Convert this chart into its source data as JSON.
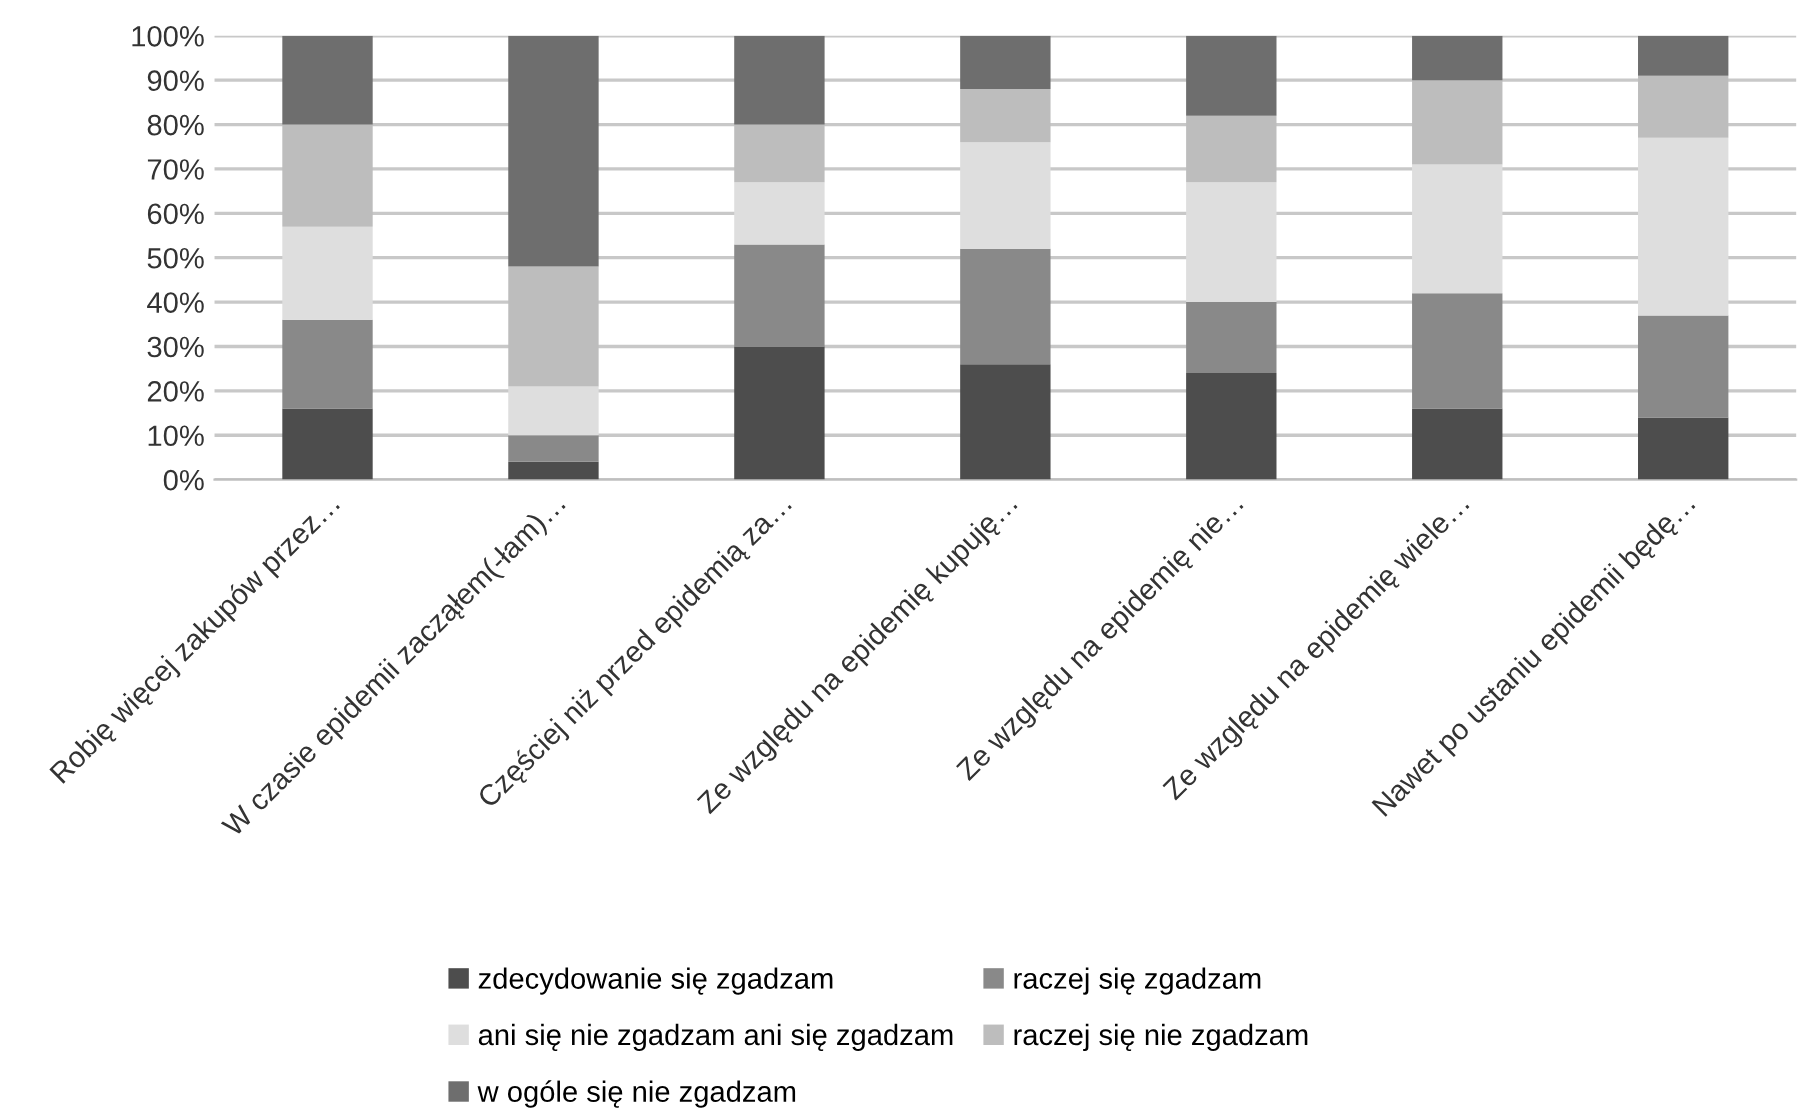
{
  "chart_data": {
    "type": "bar",
    "stacked": true,
    "categories": [
      "Robię więcej zakupów przez…",
      "W czasie epidemii zacząłem(-łam)…",
      "Częściej niż przed epidemią za…",
      "Ze względu na epidemię kupuję…",
      "Ze względu na epidemię nie…",
      "Ze względu na epidemię wiele…",
      "Nawet po ustaniu epidemii będę…"
    ],
    "series": [
      {
        "name": "zdecydowanie się zgadzam",
        "color": "#4d4d4d",
        "values": [
          16,
          4,
          30,
          26,
          24,
          16,
          14
        ]
      },
      {
        "name": "raczej się zgadzam",
        "color": "#898989",
        "values": [
          20,
          6,
          23,
          26,
          16,
          26,
          23
        ]
      },
      {
        "name": "ani się nie zgadzam ani się zgadzam",
        "color": "#dedede",
        "values": [
          21,
          11,
          14,
          24,
          27,
          29,
          40
        ]
      },
      {
        "name": "raczej się nie zgadzam",
        "color": "#bdbdbd",
        "values": [
          23,
          27,
          13,
          12,
          15,
          19,
          14
        ]
      },
      {
        "name": "w ogóle się nie zgadzam",
        "color": "#6e6e6e",
        "values": [
          20,
          52,
          20,
          12,
          18,
          10,
          9
        ]
      }
    ],
    "ylim": [
      0,
      100
    ],
    "yticks": [
      {
        "value": 0,
        "label": "0%"
      },
      {
        "value": 10,
        "label": "10%"
      },
      {
        "value": 20,
        "label": "20%"
      },
      {
        "value": 30,
        "label": "30%"
      },
      {
        "value": 40,
        "label": "40%"
      },
      {
        "value": 50,
        "label": "50%"
      },
      {
        "value": 60,
        "label": "60%"
      },
      {
        "value": 70,
        "label": "70%"
      },
      {
        "value": 80,
        "label": "80%"
      },
      {
        "value": 90,
        "label": "90%"
      },
      {
        "value": 100,
        "label": "100%"
      }
    ],
    "grid": "y",
    "legend": "bottom"
  }
}
